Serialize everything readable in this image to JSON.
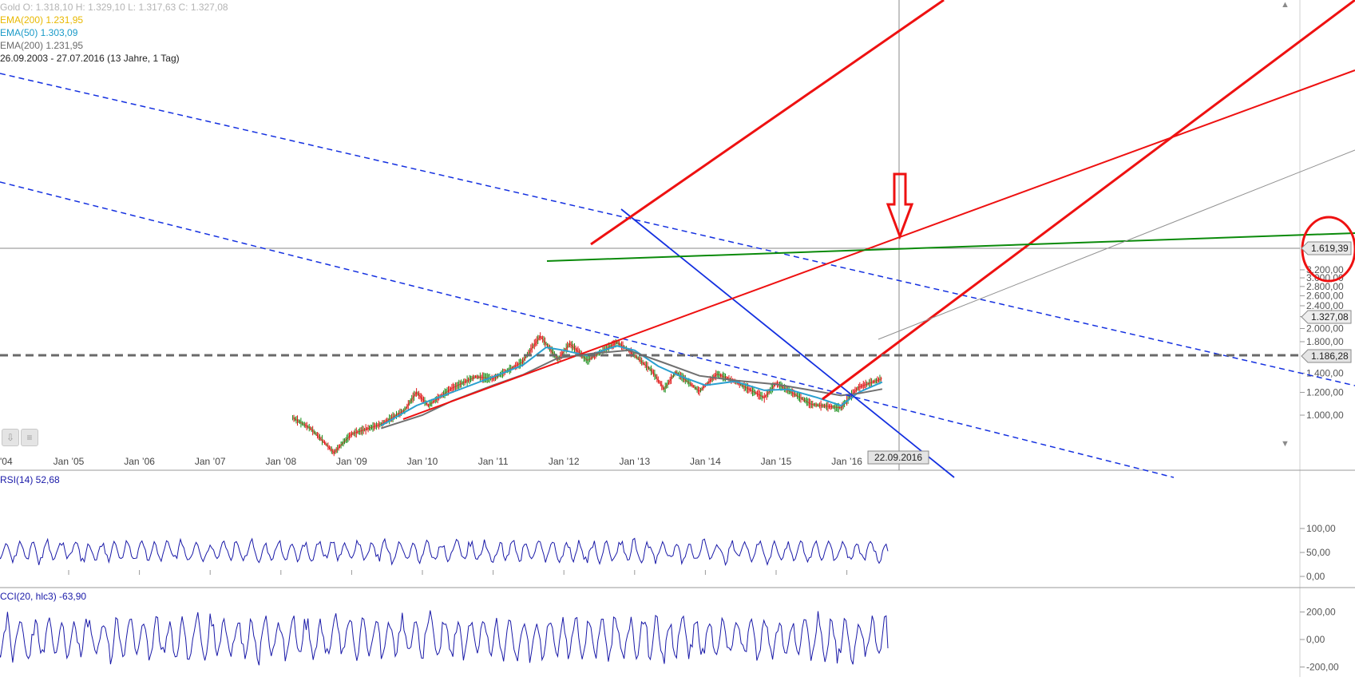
{
  "header": {
    "ohlc_line": "Gold   O: 1.318,10   H: 1.329,10   L: 1.317,63   C: 1.327,08",
    "legend_ema200_a": "EMA(200)  1.231,95",
    "legend_ema50": "EMA(50)  1.303,09",
    "legend_ema200_b": "EMA(200)  1.231,95",
    "period_label": "26.09.2003 - 27.07.2016 (13 Jahre, 1 Tag)"
  },
  "indicators": {
    "rsi_label": "RSI(14)  52,68",
    "cci_label": "CCI(20, hlc3)  -63,90"
  },
  "crosshair": {
    "date_label": "22.09.2016",
    "price_label": "1.619,39"
  },
  "price_tags": {
    "last": "1.327,08",
    "support": "1.186,28"
  },
  "colors": {
    "up_candle": "#1a8f1a",
    "down_candle": "#e01515",
    "ema200": "#707070",
    "ema50": "#2aa0d0",
    "trend_red": "#ee1111",
    "trend_blue": "#1430e0",
    "trend_green": "#0a8a0a",
    "oscillator": "#1a1aa8"
  },
  "chart_data": [
    {
      "type": "line",
      "title": "Gold",
      "y_scale": "log",
      "ylim": [
        850,
        3300
      ],
      "x_tick_labels": [
        "'04",
        "Jan'05",
        "Jan'06",
        "Jan'07",
        "Jan'08",
        "Jan'09",
        "Jan'10",
        "Jan'11",
        "Jan'12",
        "Jan'13",
        "Jan'14",
        "Jan'15",
        "Jan'16"
      ],
      "y_tick_labels": [
        "1.000,00",
        "1.200,00",
        "1.400,00",
        "1.800,00",
        "2.000,00",
        "2.200,00",
        "2.400,00",
        "2.600,00",
        "2.800,00",
        "3.000,00",
        "3.200,00"
      ],
      "series": [
        {
          "name": "Gold",
          "x": [
            "2008-03",
            "2008-06",
            "2008-10",
            "2009-01",
            "2009-06",
            "2009-10",
            "2009-12",
            "2010-02",
            "2010-06",
            "2010-10",
            "2011-01",
            "2011-04",
            "2011-06",
            "2011-09",
            "2011-12",
            "2012-02",
            "2012-05",
            "2012-10",
            "2012-12",
            "2013-04",
            "2013-06",
            "2013-08",
            "2013-12",
            "2014-03",
            "2014-06",
            "2014-11",
            "2015-01",
            "2015-07",
            "2015-12",
            "2016-03",
            "2016-07"
          ],
          "values": [
            980,
            900,
            740,
            860,
            930,
            1040,
            1200,
            1080,
            1240,
            1360,
            1340,
            1450,
            1530,
            1880,
            1560,
            1770,
            1550,
            1790,
            1680,
            1420,
            1230,
            1410,
            1210,
            1390,
            1310,
            1150,
            1290,
            1090,
            1060,
            1250,
            1340
          ]
        },
        {
          "name": "EMA(50)",
          "x": [
            "2009-06",
            "2009-12",
            "2010-06",
            "2011-01",
            "2011-06",
            "2011-10",
            "2012-01",
            "2012-05",
            "2012-10",
            "2013-01",
            "2013-05",
            "2013-09",
            "2014-01",
            "2014-06",
            "2014-11",
            "2015-03",
            "2015-08",
            "2015-12",
            "2016-03",
            "2016-07"
          ],
          "values": [
            920,
            1080,
            1200,
            1360,
            1490,
            1720,
            1680,
            1610,
            1740,
            1680,
            1480,
            1360,
            1270,
            1310,
            1220,
            1230,
            1150,
            1080,
            1200,
            1303
          ]
        },
        {
          "name": "EMA(200)",
          "x": [
            "2009-06",
            "2010-01",
            "2010-06",
            "2011-01",
            "2011-06",
            "2011-12",
            "2012-06",
            "2012-12",
            "2013-06",
            "2013-12",
            "2014-06",
            "2015-01",
            "2015-06",
            "2015-12",
            "2016-03",
            "2016-07"
          ],
          "values": [
            900,
            1000,
            1120,
            1270,
            1380,
            1580,
            1640,
            1680,
            1520,
            1370,
            1320,
            1280,
            1230,
            1170,
            1190,
            1232
          ]
        }
      ]
    },
    {
      "type": "line",
      "title": "RSI(14)",
      "ylim": [
        0,
        100
      ],
      "y_tick_labels": [
        "0,00",
        "50,00",
        "100,00"
      ],
      "series": [
        {
          "name": "RSI(14)",
          "x_range": [
            "2003-09",
            "2016-07"
          ],
          "last": 52.68,
          "min_shown": 20,
          "max_shown": 88
        }
      ]
    },
    {
      "type": "line",
      "title": "CCI(20, hlc3)",
      "ylim": [
        -200,
        200
      ],
      "y_tick_labels": [
        "-200,00",
        "0,00",
        "200,00"
      ],
      "series": [
        {
          "name": "CCI(20, hlc3)",
          "x_range": [
            "2003-09",
            "2016-07"
          ],
          "last": -63.9,
          "min_shown": -220,
          "max_shown": 280
        }
      ]
    }
  ]
}
